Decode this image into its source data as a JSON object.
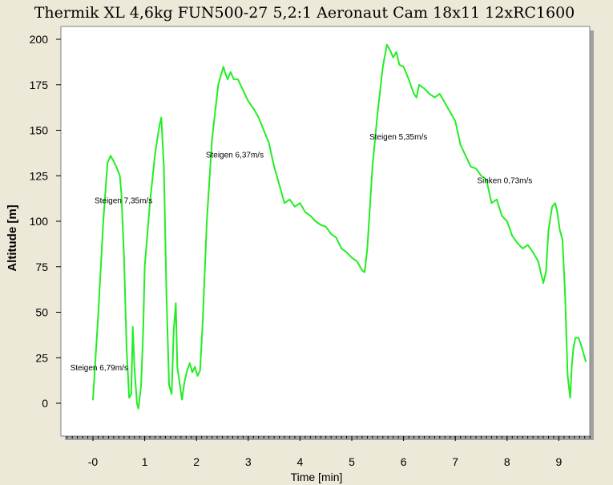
{
  "chart_data": {
    "type": "line",
    "title": "Thermik XL 4,6kg  FUN500-27 5,2:1  Aeronaut Cam 18x11 12xRC1600",
    "xlabel": "Time [min]",
    "ylabel": "Altitude [m]",
    "xlim": [
      -0.5,
      9.6
    ],
    "ylim": [
      -15,
      207
    ],
    "x_ticks": [
      "-0",
      "1",
      "2",
      "3",
      "4",
      "5",
      "6",
      "7",
      "8",
      "9"
    ],
    "y_ticks": [
      "0",
      "25",
      "50",
      "75",
      "100",
      "125",
      "150",
      "175",
      "200"
    ],
    "grid": false,
    "legend": "none",
    "line_color": "#22ee22",
    "series": [
      {
        "x": [
          0.0,
          0.1,
          0.2,
          0.28,
          0.34,
          0.4,
          0.45,
          0.52,
          0.55,
          0.6,
          0.65,
          0.7,
          0.74,
          0.77,
          0.8,
          0.85,
          0.88,
          0.93,
          0.97,
          1.0,
          1.1,
          1.2,
          1.28,
          1.32,
          1.37,
          1.42,
          1.47,
          1.52,
          1.56,
          1.6,
          1.63,
          1.68,
          1.72,
          1.77,
          1.82,
          1.87,
          1.92,
          1.97,
          2.02,
          2.07,
          2.12,
          2.2,
          2.3,
          2.42,
          2.52,
          2.55,
          2.6,
          2.66,
          2.72,
          2.8,
          2.9,
          3.0,
          3.1,
          3.2,
          3.3,
          3.4,
          3.5,
          3.6,
          3.7,
          3.8,
          3.9,
          4.0,
          4.1,
          4.2,
          4.3,
          4.4,
          4.5,
          4.6,
          4.7,
          4.8,
          4.9,
          5.0,
          5.1,
          5.2,
          5.25,
          5.3,
          5.4,
          5.5,
          5.6,
          5.68,
          5.74,
          5.8,
          5.86,
          5.92,
          6.0,
          6.1,
          6.2,
          6.25,
          6.3,
          6.4,
          6.5,
          6.6,
          6.7,
          6.8,
          6.9,
          7.0,
          7.1,
          7.2,
          7.3,
          7.4,
          7.5,
          7.6,
          7.7,
          7.8,
          7.9,
          8.0,
          8.1,
          8.2,
          8.3,
          8.4,
          8.5,
          8.6,
          8.7,
          8.75,
          8.8,
          8.87,
          8.93,
          8.97,
          9.02,
          9.07,
          9.12,
          9.17,
          9.22,
          9.25,
          9.28,
          9.32,
          9.38,
          9.42,
          9.47,
          9.52
        ],
        "values": [
          2,
          48,
          100,
          132,
          136,
          133,
          130,
          125,
          115,
          80,
          30,
          3,
          5,
          42,
          20,
          0,
          -3,
          10,
          40,
          75,
          110,
          137,
          152,
          157,
          130,
          60,
          10,
          5,
          40,
          55,
          20,
          10,
          2,
          12,
          18,
          22,
          17,
          20,
          15,
          18,
          45,
          100,
          145,
          175,
          185,
          182,
          178,
          182,
          178,
          178,
          172,
          166,
          162,
          157,
          150,
          143,
          130,
          120,
          110,
          112,
          108,
          110,
          105,
          103,
          100,
          98,
          97,
          93,
          91,
          85,
          83,
          80,
          78,
          73,
          72,
          85,
          130,
          160,
          185,
          197,
          194,
          190,
          193,
          186,
          185,
          178,
          170,
          168,
          175,
          173,
          170,
          168,
          170,
          165,
          160,
          155,
          142,
          136,
          130,
          129,
          125,
          123,
          110,
          112,
          103,
          100,
          92,
          88,
          85,
          87,
          83,
          78,
          66,
          72,
          95,
          108,
          110,
          105,
          95,
          90,
          60,
          15,
          3,
          20,
          30,
          36,
          36,
          33,
          28,
          23
        ]
      }
    ],
    "annotations": [
      {
        "text": "Steigen 6,79m/s",
        "x": -0.44,
        "y": 18
      },
      {
        "text": "Steigen 7,35m/s",
        "x": 0.03,
        "y": 110
      },
      {
        "text": "Steigen 6,37m/s",
        "x": 2.18,
        "y": 135
      },
      {
        "text": "Steigen 5,35m/s",
        "x": 5.34,
        "y": 145
      },
      {
        "text": "Sinken 0,73m/s",
        "x": 7.42,
        "y": 121
      }
    ]
  }
}
